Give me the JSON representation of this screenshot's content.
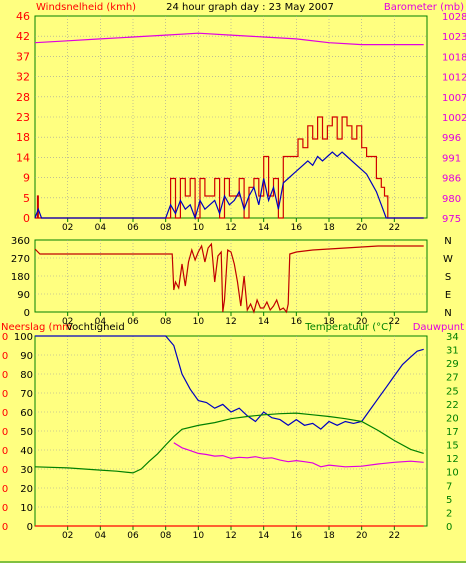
{
  "title": "24 hour graph day : 23 May 2007",
  "colors": {
    "background": "#ffff80",
    "border": "#008000",
    "grid": "#9c9c9c",
    "wind_gust": "#d00000",
    "wind_avg": "#0000c0",
    "barometer": "#e000e0",
    "direction": "#c00000",
    "rain": "#ff0000",
    "humidity": "#0000c0",
    "temperature": "#008000",
    "dewpoint": "#e000e0",
    "left_label_red": "#ff0000",
    "right_label_magenta": "#e000e0",
    "right_label_green": "#008000",
    "bottom_ticks": "#008000"
  },
  "chart_data": [
    {
      "type": "line",
      "name": "wind-barometer",
      "left_axis_label": "Windsnelheid (kmh)",
      "right_axis_label": "Barometer (mb)",
      "xlim": [
        0,
        24
      ],
      "x_ticks": [
        "02",
        "04",
        "06",
        "08",
        "10",
        "12",
        "14",
        "16",
        "18",
        "20",
        "22"
      ],
      "left_ticks": [
        "0",
        "5",
        "9",
        "14",
        "18",
        "23",
        "28",
        "32",
        "37",
        "42",
        "46"
      ],
      "left_ylim": [
        0,
        46
      ],
      "right_ticks": [
        "975",
        "980",
        "986",
        "991",
        "996",
        "1002",
        "1007",
        "1012",
        "1018",
        "1023",
        "1028"
      ],
      "right_ylim": [
        975,
        1028
      ],
      "series": [
        {
          "axis": "left",
          "color_key": "wind_gust",
          "style": "step",
          "x": [
            0,
            0.15,
            0.2,
            0.3,
            0.4,
            8,
            8.3,
            8.6,
            8.9,
            9.2,
            9.5,
            9.8,
            10.1,
            10.4,
            10.7,
            11,
            11.3,
            11.6,
            11.9,
            12.2,
            12.5,
            12.8,
            13.1,
            13.4,
            13.7,
            14,
            14.3,
            14.6,
            14.9,
            15.2,
            15.5,
            15.8,
            16.1,
            16.4,
            16.7,
            17,
            17.3,
            17.6,
            17.9,
            18.2,
            18.5,
            18.8,
            19.1,
            19.4,
            19.7,
            20,
            20.3,
            20.6,
            20.9,
            21.2,
            21.4,
            21.6,
            22.2,
            23.8
          ],
          "y": [
            0,
            5,
            0,
            0,
            0,
            0,
            9,
            0,
            9,
            5,
            9,
            0,
            9,
            5,
            5,
            9,
            0,
            9,
            5,
            5,
            9,
            0,
            7,
            9,
            5,
            14,
            5,
            9,
            0,
            14,
            14,
            14,
            18,
            16,
            21,
            18,
            23,
            18,
            21,
            23,
            18,
            23,
            21,
            18,
            21,
            16,
            14,
            14,
            9,
            7,
            5,
            0,
            0,
            0
          ]
        },
        {
          "axis": "left",
          "color_key": "wind_avg",
          "x": [
            0,
            0.2,
            0.4,
            8,
            8.3,
            8.6,
            8.9,
            9.2,
            9.5,
            9.8,
            10.1,
            10.4,
            10.7,
            11,
            11.3,
            11.6,
            11.9,
            12.2,
            12.5,
            12.8,
            13.1,
            13.4,
            13.7,
            14,
            14.3,
            14.6,
            14.9,
            15.2,
            15.5,
            15.8,
            16.1,
            16.4,
            16.7,
            17,
            17.3,
            17.6,
            17.9,
            18.2,
            18.5,
            18.8,
            19.1,
            19.4,
            19.7,
            20,
            20.3,
            20.6,
            20.9,
            21.2,
            21.5,
            22.2,
            23.8
          ],
          "y": [
            0,
            2,
            0,
            0,
            3,
            1,
            4,
            2,
            3,
            0,
            4,
            2,
            3,
            4,
            1,
            5,
            3,
            4,
            6,
            2,
            5,
            7,
            3,
            9,
            4,
            7,
            2,
            8,
            9,
            10,
            11,
            12,
            13,
            12,
            14,
            13,
            14,
            15,
            14,
            15,
            14,
            13,
            12,
            11,
            10,
            8,
            6,
            3,
            0,
            0,
            0
          ]
        },
        {
          "axis": "right",
          "color_key": "barometer",
          "x": [
            0,
            2,
            4,
            6,
            8,
            10,
            12,
            14,
            16,
            18,
            20,
            22,
            23.8
          ],
          "y": [
            1021,
            1021.5,
            1022,
            1022.5,
            1023,
            1023.5,
            1023,
            1022.5,
            1022,
            1021,
            1020.5,
            1020.5,
            1020.5
          ]
        }
      ]
    },
    {
      "type": "line",
      "name": "wind-direction",
      "xlim": [
        0,
        24
      ],
      "left_ticks": [
        "360",
        "270",
        "180",
        "90",
        "0"
      ],
      "left_ylim": [
        0,
        360
      ],
      "right_ticks": [
        "N",
        "W",
        "S",
        "E",
        "N"
      ],
      "series": [
        {
          "color_key": "direction",
          "x": [
            0,
            0.3,
            8.4,
            8.5,
            8.6,
            8.8,
            9,
            9.2,
            9.4,
            9.6,
            9.8,
            10,
            10.2,
            10.4,
            10.6,
            10.8,
            11,
            11.2,
            11.4,
            11.5,
            11.6,
            11.8,
            12,
            12.2,
            12.4,
            12.6,
            12.8,
            13,
            13.2,
            13.4,
            13.6,
            13.8,
            14,
            14.2,
            14.4,
            14.6,
            14.8,
            15,
            15.2,
            15.4,
            15.5,
            15.6,
            16,
            17,
            18,
            19,
            20,
            21,
            22,
            23.8
          ],
          "y": [
            315,
            290,
            290,
            110,
            150,
            120,
            240,
            130,
            250,
            310,
            260,
            300,
            330,
            250,
            320,
            340,
            150,
            280,
            300,
            0,
            60,
            310,
            300,
            240,
            150,
            30,
            180,
            10,
            40,
            0,
            60,
            20,
            20,
            50,
            10,
            30,
            60,
            10,
            20,
            0,
            40,
            290,
            300,
            310,
            315,
            320,
            325,
            330,
            330,
            330
          ]
        }
      ]
    },
    {
      "type": "line",
      "name": "rain-humidity-temperature",
      "left_axis_labels": [
        "Neerslag (mm",
        "Vochtigheid"
      ],
      "right_axis_labels": [
        "Temperatuur (°C)",
        "Dauwpunt"
      ],
      "xlim": [
        0,
        24
      ],
      "left_ticks_rain": [
        "0",
        "0",
        "0",
        "0",
        "0",
        "0",
        "0",
        "0",
        "0",
        "0",
        "0"
      ],
      "left_ticks_humidity": [
        "0",
        "10",
        "20",
        "30",
        "40",
        "50",
        "60",
        "70",
        "80",
        "90",
        "100"
      ],
      "humidity_ylim": [
        0,
        100
      ],
      "right_ticks": [
        "0",
        "2",
        "5",
        "7",
        "10",
        "12",
        "15",
        "17",
        "20",
        "22",
        "25",
        "27",
        "29",
        "31",
        "34"
      ],
      "right_ylim": [
        0,
        34
      ],
      "series": [
        {
          "axis": "rain",
          "color_key": "rain",
          "x": [
            0,
            23.8
          ],
          "y": [
            0,
            0
          ]
        },
        {
          "axis": "humidity",
          "color_key": "humidity",
          "x": [
            0,
            7,
            7.5,
            8,
            8.5,
            9,
            9.5,
            10,
            10.5,
            11,
            11.5,
            12,
            12.5,
            13,
            13.5,
            14,
            14.5,
            15,
            15.5,
            16,
            16.5,
            17,
            17.5,
            18,
            18.5,
            19,
            19.5,
            20,
            20.5,
            21,
            21.5,
            22,
            22.5,
            23,
            23.4,
            23.8
          ],
          "y": [
            100,
            100,
            100,
            100,
            95,
            80,
            72,
            66,
            65,
            62,
            64,
            60,
            62,
            58,
            55,
            60,
            57,
            56,
            53,
            56,
            53,
            54,
            51,
            55,
            53,
            55,
            54,
            55,
            61,
            67,
            73,
            79,
            85,
            89,
            92,
            93
          ]
        },
        {
          "axis": "right",
          "color_key": "temperature",
          "x": [
            0,
            2,
            4,
            5,
            6,
            6.5,
            7,
            7.5,
            8,
            8.5,
            9,
            10,
            11,
            12,
            13,
            14,
            15,
            16,
            17,
            18,
            19,
            20,
            21,
            22,
            23,
            23.8
          ],
          "y": [
            10.6,
            10.4,
            10,
            9.8,
            9.5,
            10.2,
            11.6,
            12.9,
            14.5,
            16,
            17.3,
            18,
            18.5,
            19.2,
            19.6,
            19.9,
            20.1,
            20.2,
            19.9,
            19.6,
            19.2,
            18.7,
            17.1,
            15.3,
            13.7,
            13
          ]
        },
        {
          "axis": "right",
          "color_key": "dewpoint",
          "x": [
            8.5,
            9,
            9.5,
            10,
            10.5,
            11,
            11.5,
            12,
            12.5,
            13,
            13.5,
            14,
            14.5,
            15,
            15.5,
            16,
            16.5,
            17,
            17.5,
            18,
            19,
            20,
            21,
            22,
            23,
            23.8
          ],
          "y": [
            14.9,
            14,
            13.5,
            13,
            12.8,
            12.5,
            12.6,
            12.1,
            12.3,
            12.2,
            12.4,
            12.1,
            12.2,
            11.8,
            11.5,
            11.7,
            11.5,
            11.3,
            10.6,
            10.9,
            10.6,
            10.7,
            11.1,
            11.4,
            11.6,
            11.4
          ]
        }
      ]
    }
  ]
}
